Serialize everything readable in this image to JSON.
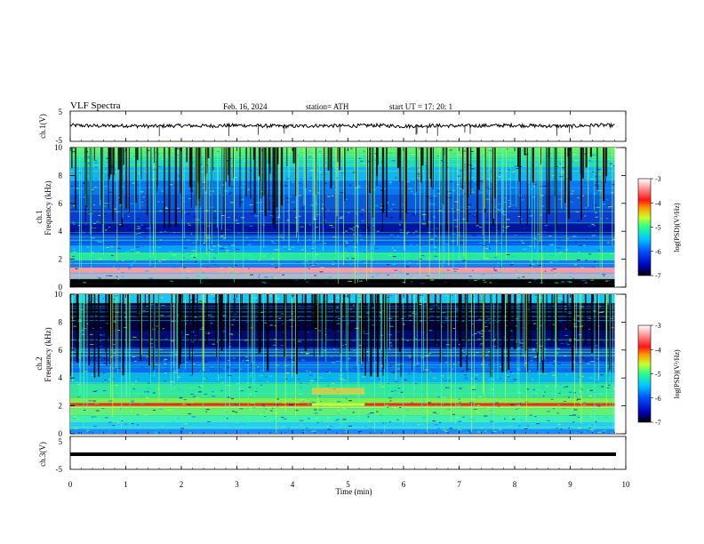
{
  "header": {
    "title": "VLF  Spectra",
    "date": "Feb. 16, 2024",
    "station": "station= ATH",
    "start": "start  UT  =    17: 20: 1"
  },
  "colors": {
    "waveform": "#000000",
    "spectrogram_floor": "#00004a",
    "colorbar": [
      "#000000",
      "#0000c8",
      "#0064ff",
      "#00c8ff",
      "#32ff96",
      "#c8ff32",
      "#ff9600",
      "#ff1e1e",
      "#ff8c8c",
      "#ffffff"
    ]
  },
  "chart_data": [
    {
      "type": "line",
      "name": "ch1-waveform",
      "ylabel": "ch.1(V)",
      "ylim": [
        -5,
        5
      ],
      "yticks": [
        "5",
        "-5"
      ],
      "xlim": [
        0,
        10
      ],
      "x": [
        0,
        0.5,
        1,
        1.5,
        2,
        2.5,
        3,
        3.5,
        4,
        4.5,
        5,
        5.5,
        6,
        6.5,
        7,
        7.5,
        8,
        8.5,
        9,
        9.5,
        9.8
      ],
      "y": [
        0.3,
        0.1,
        0.2,
        0.0,
        0.2,
        0.1,
        0.3,
        0.1,
        0.0,
        0.2,
        0.1,
        0.3,
        0.0,
        0.2,
        0.1,
        0.2,
        0.3,
        0.1,
        0.0,
        0.4,
        0.2
      ]
    },
    {
      "type": "heatmap",
      "name": "ch1-spectrogram",
      "ylabel": "ch.1\nFrequency (kHz)",
      "ylim": [
        0,
        10
      ],
      "yticks": [
        "0",
        "2",
        "4",
        "6",
        "8",
        "10"
      ],
      "xlim": [
        0,
        10
      ],
      "data_extent_min": 9.8,
      "colorbar": {
        "label": "log(PSD)(V²/Hz)",
        "range": [
          -7,
          -3
        ],
        "ticks": [
          "-3",
          "-4",
          "-5",
          "-6",
          "-7"
        ]
      }
    },
    {
      "type": "heatmap",
      "name": "ch2-spectrogram",
      "ylabel": "ch.2\nFrequency (kHz)",
      "ylim": [
        0,
        10
      ],
      "yticks": [
        "0",
        "2",
        "4",
        "6",
        "8",
        "10"
      ],
      "xlim": [
        0,
        10
      ],
      "data_extent_min": 9.8,
      "colorbar": {
        "label": "log(PSD)(V²/Hz)",
        "range": [
          -7,
          -3
        ],
        "ticks": [
          "-3",
          "-4",
          "-5",
          "-6",
          "-7"
        ]
      }
    },
    {
      "type": "line",
      "name": "ch3-waveform",
      "ylabel": "ch.3(V)",
      "ylim": [
        -5,
        5
      ],
      "yticks": [
        "5",
        "-5"
      ],
      "xlim": [
        0,
        10
      ],
      "x": [
        0,
        9.8
      ],
      "y": [
        -1.5,
        -1.5
      ]
    }
  ],
  "xaxis": {
    "label": "Time  (min)",
    "ticks": [
      "0",
      "1",
      "2",
      "3",
      "4",
      "5",
      "6",
      "7",
      "8",
      "9",
      "10"
    ]
  }
}
